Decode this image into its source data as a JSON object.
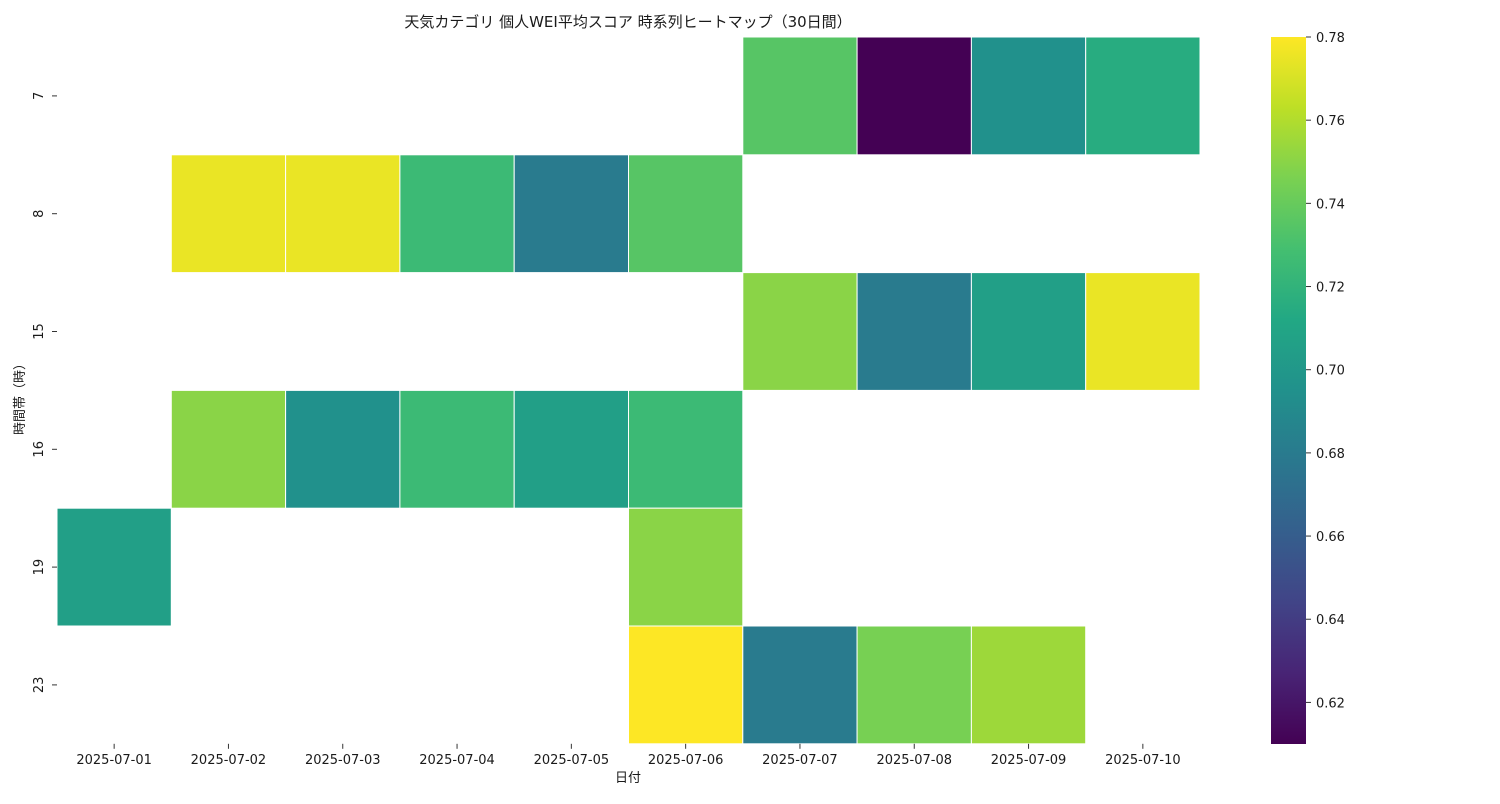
{
  "chart_data": {
    "type": "heatmap",
    "title": "天気カテゴリ 個人WEI平均スコア 時系列ヒートマップ（30日間）",
    "xlabel": "日付",
    "ylabel": "時間帯（時）",
    "x_categories": [
      "2025-07-01",
      "2025-07-02",
      "2025-07-03",
      "2025-07-04",
      "2025-07-05",
      "2025-07-06",
      "2025-07-07",
      "2025-07-08",
      "2025-07-09",
      "2025-07-10"
    ],
    "y_categories": [
      "7",
      "8",
      "15",
      "16",
      "19",
      "23"
    ],
    "values": [
      [
        null,
        null,
        null,
        null,
        null,
        null,
        0.735,
        0.61,
        0.695,
        0.715
      ],
      [
        null,
        0.775,
        0.775,
        0.725,
        0.68,
        0.735,
        null,
        null,
        null,
        null
      ],
      [
        null,
        null,
        null,
        null,
        null,
        null,
        0.75,
        0.68,
        0.705,
        0.775
      ],
      [
        null,
        0.75,
        0.695,
        0.725,
        0.705,
        0.725,
        null,
        null,
        null,
        null
      ],
      [
        0.705,
        null,
        null,
        null,
        null,
        0.75,
        null,
        null,
        null,
        null
      ],
      [
        null,
        null,
        null,
        null,
        null,
        0.78,
        0.68,
        0.745,
        0.755,
        null
      ]
    ],
    "colorscale": "viridis",
    "color_range": [
      0.61,
      0.78
    ],
    "colorbar_ticks": [
      "0.62",
      "0.64",
      "0.66",
      "0.68",
      "0.70",
      "0.72",
      "0.74",
      "0.76",
      "0.78"
    ]
  }
}
